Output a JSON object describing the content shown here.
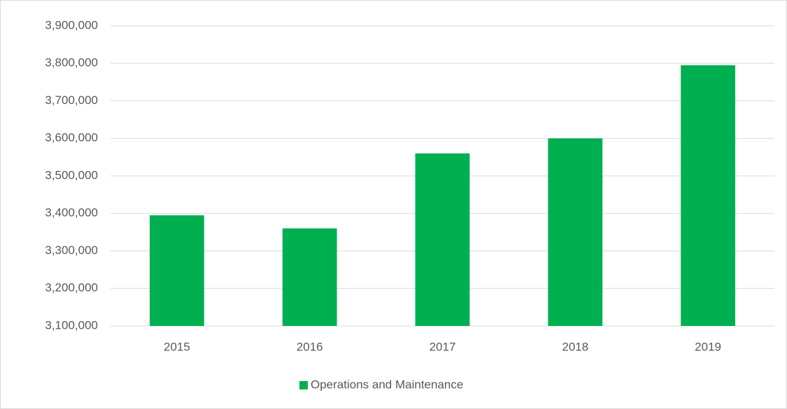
{
  "chart_data": {
    "type": "bar",
    "categories": [
      "2015",
      "2016",
      "2017",
      "2018",
      "2019"
    ],
    "series": [
      {
        "name": "Operations and Maintenance",
        "color": "#00b050",
        "values": [
          3395000,
          3360000,
          3560000,
          3600000,
          3795000
        ]
      }
    ],
    "ylim": [
      3100000,
      3900000
    ],
    "yticks": [
      {
        "value": 3100000,
        "label": "3,100,000"
      },
      {
        "value": 3200000,
        "label": "3,200,000"
      },
      {
        "value": 3300000,
        "label": "3,300,000"
      },
      {
        "value": 3400000,
        "label": "3,400,000"
      },
      {
        "value": 3500000,
        "label": "3,500,000"
      },
      {
        "value": 3600000,
        "label": "3,600,000"
      },
      {
        "value": 3700000,
        "label": "3,700,000"
      },
      {
        "value": 3800000,
        "label": "3,800,000"
      },
      {
        "value": 3900000,
        "label": "3,900,000"
      }
    ],
    "grid": true,
    "legend": "bottom"
  }
}
